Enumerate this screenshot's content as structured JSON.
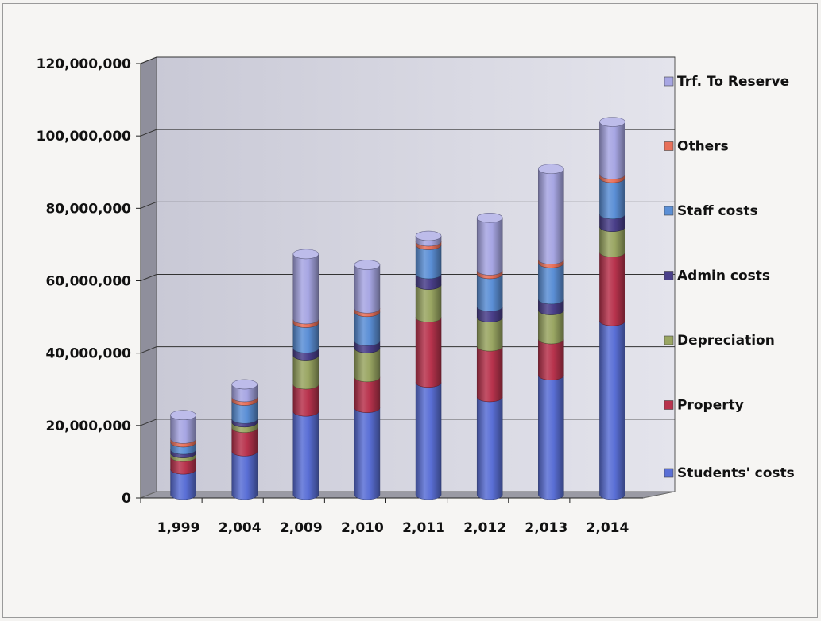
{
  "chart_data": {
    "type": "bar",
    "stacked": true,
    "style": "3d-cylinder",
    "categories": [
      "1,999",
      "2,004",
      "2,009",
      "2,010",
      "2,011",
      "2,012",
      "2,013",
      "2,014"
    ],
    "y_ticks": [
      "0",
      "20,000,000",
      "40,000,000",
      "60,000,000",
      "80,000,000",
      "100,000,000",
      "120,000,000"
    ],
    "ylim": [
      0,
      120000000
    ],
    "grid": true,
    "legend_position": "right",
    "series": [
      {
        "name": "Students' costs",
        "color": "#5a6fd6",
        "values": [
          7000000,
          12000000,
          23000000,
          24000000,
          31000000,
          27000000,
          33000000,
          48000000
        ]
      },
      {
        "name": "Property",
        "color": "#b8334d",
        "values": [
          3500000,
          6500000,
          7500000,
          8500000,
          18000000,
          14000000,
          10000000,
          19000000
        ]
      },
      {
        "name": "Depreciation",
        "color": "#9aa663",
        "values": [
          1000000,
          1500000,
          8000000,
          8000000,
          9000000,
          8000000,
          8000000,
          7000000
        ]
      },
      {
        "name": "Admin costs",
        "color": "#4a3f8a",
        "values": [
          1000000,
          1000000,
          2000000,
          2000000,
          3000000,
          3000000,
          3000000,
          3500000
        ]
      },
      {
        "name": "Staff costs",
        "color": "#5b8fd6",
        "values": [
          2000000,
          5000000,
          7000000,
          8000000,
          8000000,
          9000000,
          10000000,
          10000000
        ]
      },
      {
        "name": "Others",
        "color": "#e8705a",
        "values": [
          1000000,
          1000000,
          1000000,
          1000000,
          1000000,
          1000000,
          1000000,
          1000000
        ]
      },
      {
        "name": "Trf. To Reserve",
        "color": "#a7a6e3",
        "values": [
          6500000,
          3500000,
          18000000,
          12000000,
          1500000,
          14500000,
          25000000,
          14500000
        ]
      }
    ]
  }
}
